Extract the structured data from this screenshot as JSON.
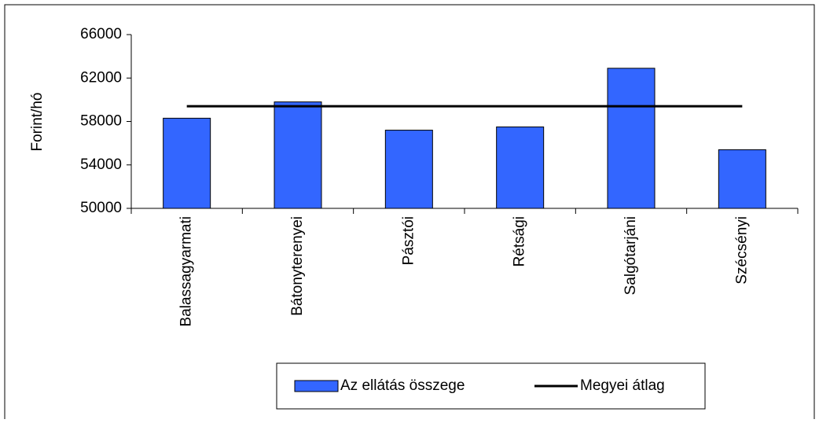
{
  "chart_data": {
    "type": "bar",
    "ylabel": "Forint/hó",
    "categories": [
      "Balassagyarmati",
      "Bátonyterenyei",
      "Pásztói",
      "Rétsági",
      "Salgótarjáni",
      "Szécsényi"
    ],
    "series": [
      {
        "name": "Az ellátás összege",
        "type": "bar",
        "color": "#3366ff",
        "values": [
          58300,
          59800,
          57200,
          57500,
          62900,
          55400
        ]
      },
      {
        "name": "Megyei átlag",
        "type": "line",
        "color": "#000000",
        "values": [
          59400,
          59400,
          59400,
          59400,
          59400,
          59400
        ]
      }
    ],
    "ylim": [
      50000,
      66000
    ],
    "yticks": [
      50000,
      54000,
      58000,
      62000,
      66000
    ]
  }
}
